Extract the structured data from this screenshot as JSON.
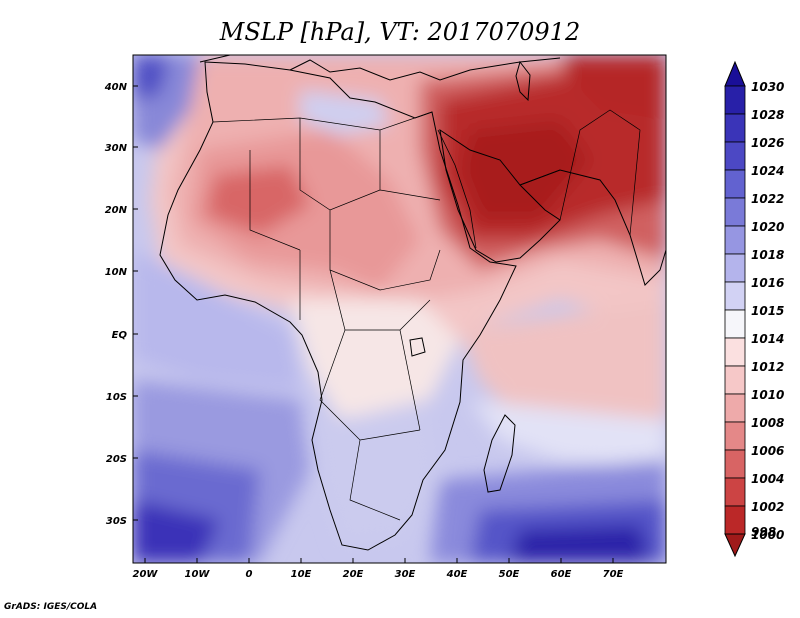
{
  "title": "MSLP [hPa], VT: 2017070912",
  "credit": "GrADS: IGES/COLA",
  "lat_labels": [
    "40N",
    "30N",
    "20N",
    "10N",
    "EQ",
    "10S",
    "20S",
    "30S"
  ],
  "lon_labels": [
    "20W",
    "10W",
    "0",
    "10E",
    "20E",
    "30E",
    "40E",
    "50E",
    "60E",
    "70E"
  ],
  "colorbar": {
    "top_label": "1030",
    "bottom_label": "998",
    "levels": [
      {
        "label": "1028",
        "color": "#2820a8"
      },
      {
        "label": "1026",
        "color": "#3a34b8"
      },
      {
        "label": "1024",
        "color": "#4c48c4"
      },
      {
        "label": "1022",
        "color": "#6262d0"
      },
      {
        "label": "1020",
        "color": "#7a7ad8"
      },
      {
        "label": "1018",
        "color": "#9696e2"
      },
      {
        "label": "1016",
        "color": "#b4b4ec"
      },
      {
        "label": "1015",
        "color": "#d2d2f4"
      },
      {
        "label": "1014",
        "color": "#f6f6fa"
      },
      {
        "label": "1012",
        "color": "#fbe0e0"
      },
      {
        "label": "1010",
        "color": "#f6c8c8"
      },
      {
        "label": "1008",
        "color": "#eeaaaa"
      },
      {
        "label": "1006",
        "color": "#e48888"
      },
      {
        "label": "1004",
        "color": "#d86464"
      },
      {
        "label": "1002",
        "color": "#cc4444"
      },
      {
        "label": "1000",
        "color": "#bb2828"
      }
    ],
    "top_color": "#1a0f98",
    "bottom_color": "#a01a1a"
  }
}
